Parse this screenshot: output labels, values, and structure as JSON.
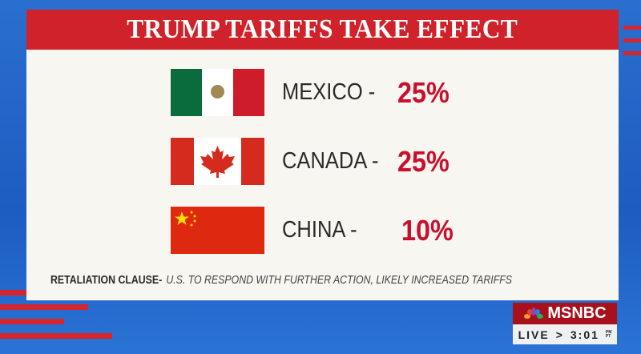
{
  "title": "TRUMP TARIFFS TAKE EFFECT",
  "countries": [
    {
      "name": "MEXICO -",
      "tariff": "25%",
      "flag": "mexico-flag"
    },
    {
      "name": "CANADA -",
      "tariff": "25%",
      "flag": "canada-flag"
    },
    {
      "name": "CHINA -",
      "tariff": "10%",
      "flag": "china-flag"
    }
  ],
  "footnote": {
    "label": "RETALIATION CLAUSE-",
    "text": "U.S. TO RESPOND WITH FURTHER ACTION, LIKELY INCREASED TARIFFS"
  },
  "network": {
    "logo": "MSNBC",
    "live": "LIVE",
    "arrow": ">",
    "time": "3:01",
    "ampm": "PM",
    "zone": "PT"
  },
  "colors": {
    "header": "#d0222b",
    "tariff": "#c8102e",
    "background": "#1d5cc0"
  }
}
